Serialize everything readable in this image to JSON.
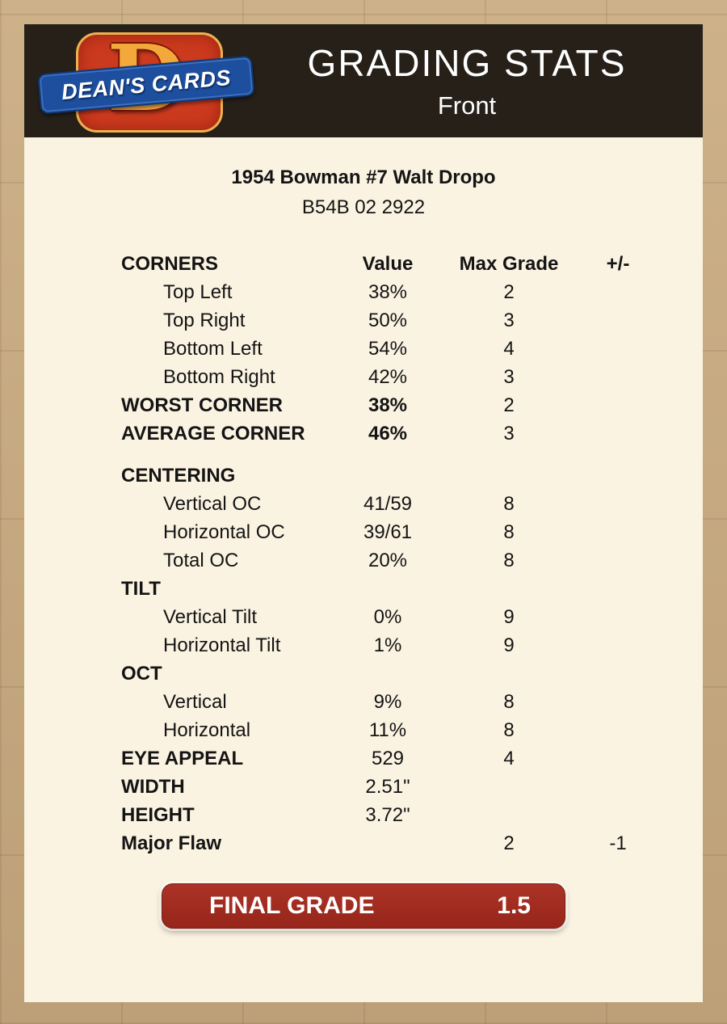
{
  "colors": {
    "page_background": "#c6aa7f",
    "panel_background": "#fbf3e2",
    "header_background": "#262019",
    "final_grade_red": "#9e2a1e",
    "logo_red": "#cc3a1e",
    "logo_blue": "#1e4f9f",
    "logo_gold": "#f3a83a"
  },
  "header": {
    "logo_monogram": "D",
    "logo_text": "DEAN'S CARDS",
    "title": "GRADING STATS",
    "subtitle": "Front"
  },
  "card": {
    "name": "1954 Bowman #7 Walt Dropo",
    "cert": "B54B 02 2922"
  },
  "table": {
    "header": {
      "label": "CORNERS",
      "value": "Value",
      "max": "Max Grade",
      "pm": "+/-"
    },
    "rows": [
      {
        "label": "Top Left",
        "value": "38%",
        "max": "2",
        "pm": ""
      },
      {
        "label": "Top Right",
        "value": "50%",
        "max": "3",
        "pm": ""
      },
      {
        "label": "Bottom Left",
        "value": "54%",
        "max": "4",
        "pm": ""
      },
      {
        "label": "Bottom Right",
        "value": "42%",
        "max": "3",
        "pm": ""
      },
      {
        "label": "WORST CORNER",
        "value": "38%",
        "max": "2",
        "pm": ""
      },
      {
        "label": "AVERAGE CORNER",
        "value": "46%",
        "max": "3",
        "pm": ""
      },
      {
        "label": "CENTERING",
        "value": "",
        "max": "",
        "pm": ""
      },
      {
        "label": "Vertical OC",
        "value": "41/59",
        "max": "8",
        "pm": ""
      },
      {
        "label": "Horizontal OC",
        "value": "39/61",
        "max": "8",
        "pm": ""
      },
      {
        "label": "Total OC",
        "value": "20%",
        "max": "8",
        "pm": ""
      },
      {
        "label": "TILT",
        "value": "",
        "max": "",
        "pm": ""
      },
      {
        "label": "Vertical Tilt",
        "value": "0%",
        "max": "9",
        "pm": ""
      },
      {
        "label": "Horizontal Tilt",
        "value": "1%",
        "max": "9",
        "pm": ""
      },
      {
        "label": "OCT",
        "value": "",
        "max": "",
        "pm": ""
      },
      {
        "label": "Vertical",
        "value": "9%",
        "max": "8",
        "pm": ""
      },
      {
        "label": "Horizontal",
        "value": "11%",
        "max": "8",
        "pm": ""
      },
      {
        "label": "EYE APPEAL",
        "value": "529",
        "max": "4",
        "pm": ""
      },
      {
        "label": "WIDTH",
        "value": "2.51\"",
        "max": "",
        "pm": ""
      },
      {
        "label": "HEIGHT",
        "value": "3.72\"",
        "max": "",
        "pm": ""
      },
      {
        "label": "Major Flaw",
        "value": "",
        "max": "2",
        "pm": "-1"
      }
    ]
  },
  "final": {
    "label": "FINAL GRADE",
    "value": "1.5"
  }
}
